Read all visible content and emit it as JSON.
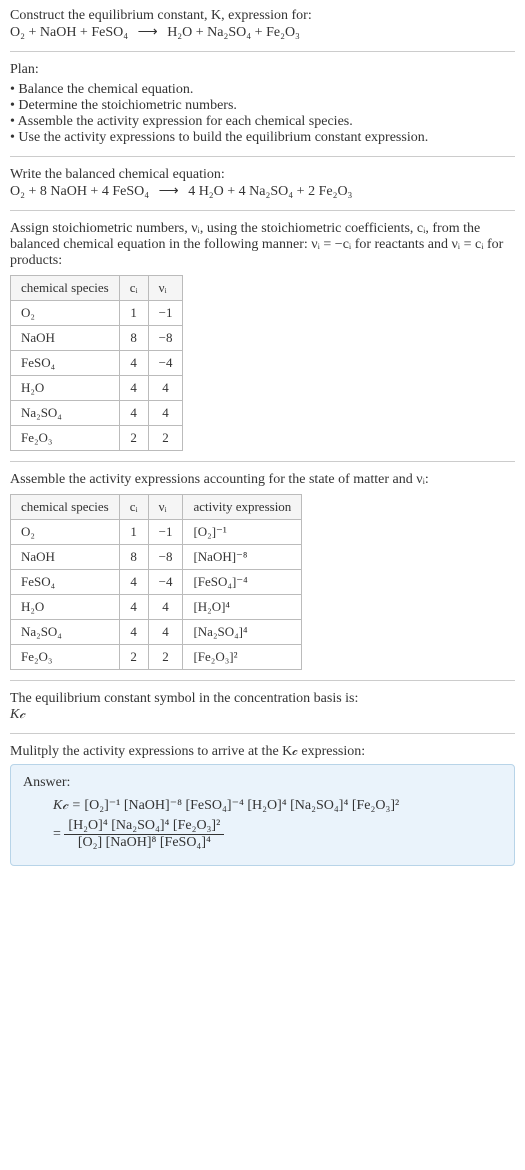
{
  "intro": {
    "line1": "Construct the equilibrium constant, K, expression for:",
    "equation_lhs": [
      "O₂",
      "NaOH",
      "FeSO₄"
    ],
    "equation_rhs": [
      "H₂O",
      "Na₂SO₄",
      "Fe₂O₃"
    ],
    "arrow": "⟶"
  },
  "plan": {
    "title": "Plan:",
    "items": [
      "Balance the chemical equation.",
      "Determine the stoichiometric numbers.",
      "Assemble the activity expression for each chemical species.",
      "Use the activity expressions to build the equilibrium constant expression."
    ]
  },
  "balanced": {
    "title": "Write the balanced chemical equation:",
    "lhs": [
      "O₂",
      "8 NaOH",
      "4 FeSO₄"
    ],
    "rhs": [
      "4 H₂O",
      "4 Na₂SO₄",
      "2 Fe₂O₃"
    ],
    "arrow": "⟶"
  },
  "stoich": {
    "text": "Assign stoichiometric numbers, νᵢ, using the stoichiometric coefficients, cᵢ, from the balanced chemical equation in the following manner: νᵢ = −cᵢ for reactants and νᵢ = cᵢ for products:",
    "headers": [
      "chemical species",
      "cᵢ",
      "νᵢ"
    ],
    "rows": [
      {
        "sp": "O₂",
        "ci": "1",
        "vi": "−1"
      },
      {
        "sp": "NaOH",
        "ci": "8",
        "vi": "−8"
      },
      {
        "sp": "FeSO₄",
        "ci": "4",
        "vi": "−4"
      },
      {
        "sp": "H₂O",
        "ci": "4",
        "vi": "4"
      },
      {
        "sp": "Na₂SO₄",
        "ci": "4",
        "vi": "4"
      },
      {
        "sp": "Fe₂O₃",
        "ci": "2",
        "vi": "2"
      }
    ]
  },
  "activity": {
    "text": "Assemble the activity expressions accounting for the state of matter and νᵢ:",
    "headers": [
      "chemical species",
      "cᵢ",
      "νᵢ",
      "activity expression"
    ],
    "rows": [
      {
        "sp": "O₂",
        "ci": "1",
        "vi": "−1",
        "ae": "[O₂]⁻¹"
      },
      {
        "sp": "NaOH",
        "ci": "8",
        "vi": "−8",
        "ae": "[NaOH]⁻⁸"
      },
      {
        "sp": "FeSO₄",
        "ci": "4",
        "vi": "−4",
        "ae": "[FeSO₄]⁻⁴"
      },
      {
        "sp": "H₂O",
        "ci": "4",
        "vi": "4",
        "ae": "[H₂O]⁴"
      },
      {
        "sp": "Na₂SO₄",
        "ci": "4",
        "vi": "4",
        "ae": "[Na₂SO₄]⁴"
      },
      {
        "sp": "Fe₂O₃",
        "ci": "2",
        "vi": "2",
        "ae": "[Fe₂O₃]²"
      }
    ]
  },
  "symbol": {
    "line1": "The equilibrium constant symbol in the concentration basis is:",
    "line2": "K𝒸"
  },
  "multiply": {
    "text": "Mulitply the activity expressions to arrive at the K𝒸 expression:"
  },
  "answer": {
    "label": "Answer:",
    "lhs": "K𝒸 = ",
    "flat": "[O₂]⁻¹ [NaOH]⁻⁸ [FeSO₄]⁻⁴ [H₂O]⁴ [Na₂SO₄]⁴ [Fe₂O₃]²",
    "eq": "= ",
    "num": "[H₂O]⁴ [Na₂SO₄]⁴ [Fe₂O₃]²",
    "den": "[O₂] [NaOH]⁸ [FeSO₄]⁴"
  }
}
